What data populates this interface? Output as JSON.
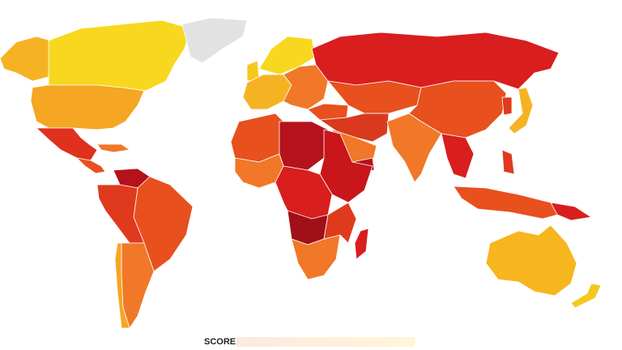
{
  "legend": {
    "title": "SCORE"
  }
}
